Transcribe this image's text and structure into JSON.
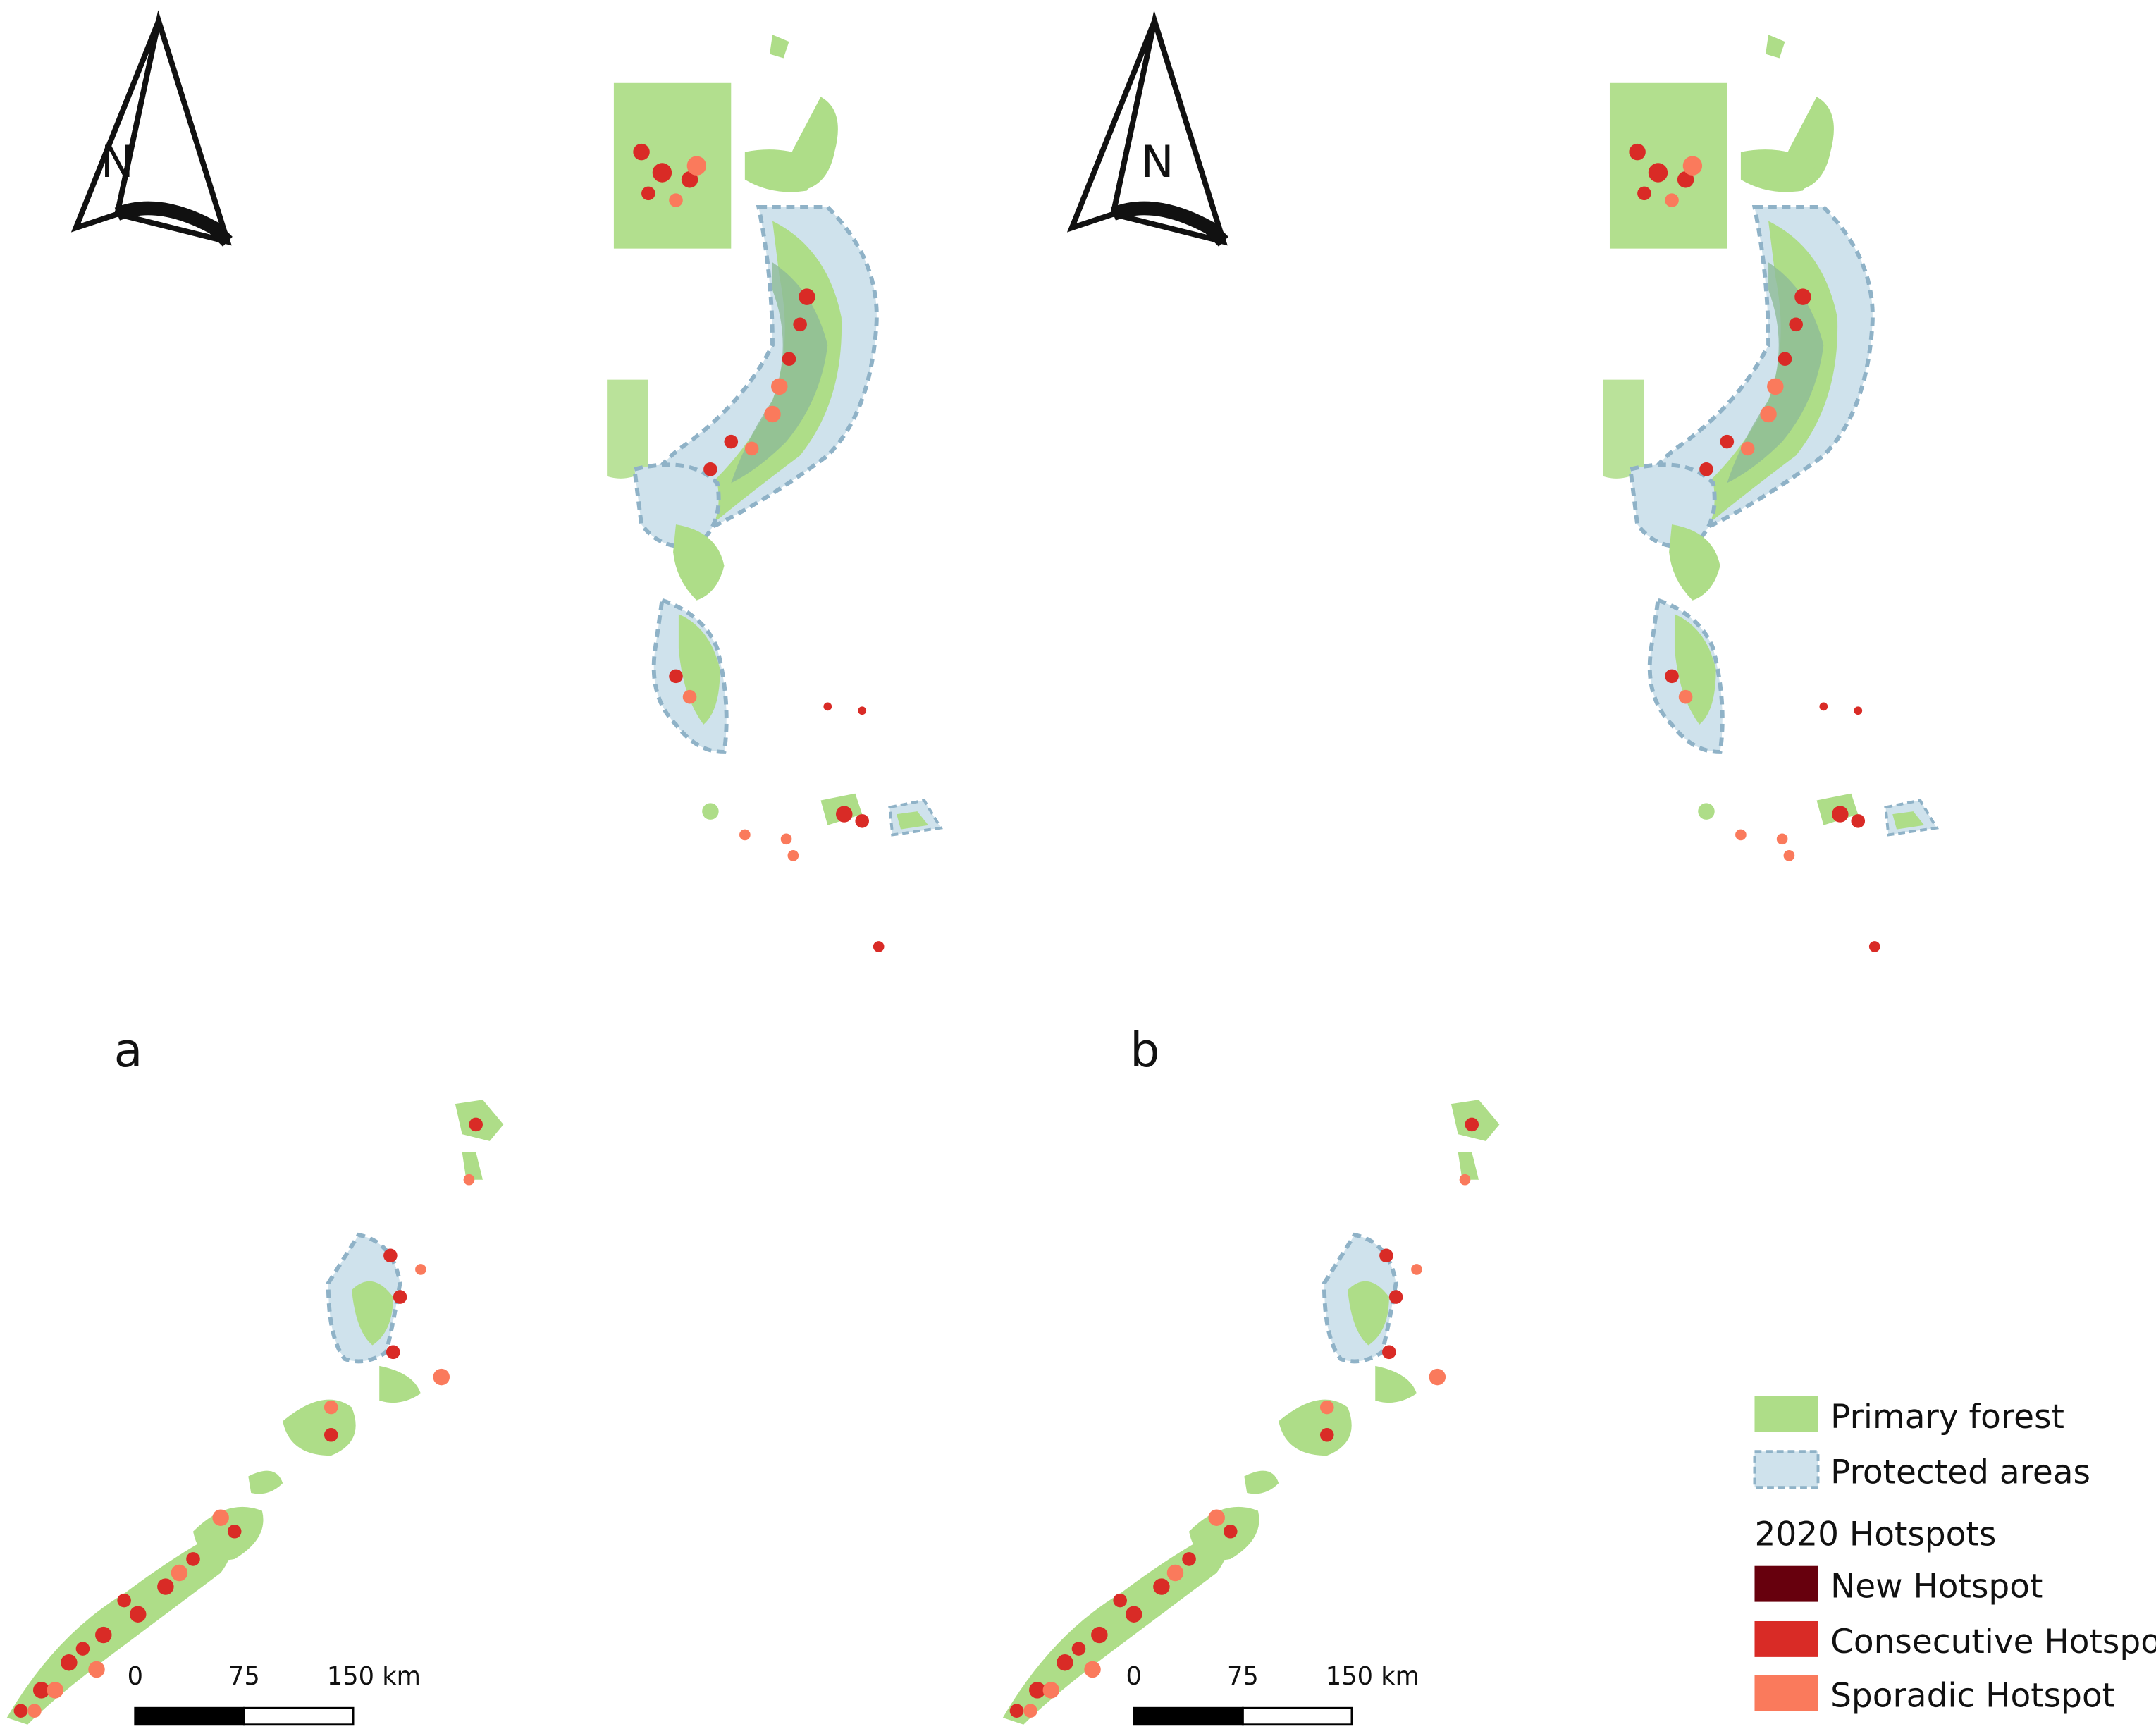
{
  "panels": [
    {
      "id": "a",
      "label": "a"
    },
    {
      "id": "b",
      "label": "b"
    }
  ],
  "north_arrow": {
    "label": "N"
  },
  "scale_bar": {
    "ticks": [
      "0",
      "75",
      "150 km"
    ]
  },
  "legend": {
    "items": [
      {
        "label": "Primary forest",
        "color": "#aedd88"
      },
      {
        "label": "Protected areas",
        "color": "#cfe2ec",
        "border": "#8fb2c7"
      }
    ],
    "hotspot_title": "2020 Hotspots",
    "hotspots": [
      {
        "label": "New Hotspot",
        "color": "#67000d"
      },
      {
        "label": "Consecutive Hotspot",
        "color": "#d92b26"
      },
      {
        "label": "Sporadic Hotspot",
        "color": "#fa7a5c"
      }
    ]
  }
}
